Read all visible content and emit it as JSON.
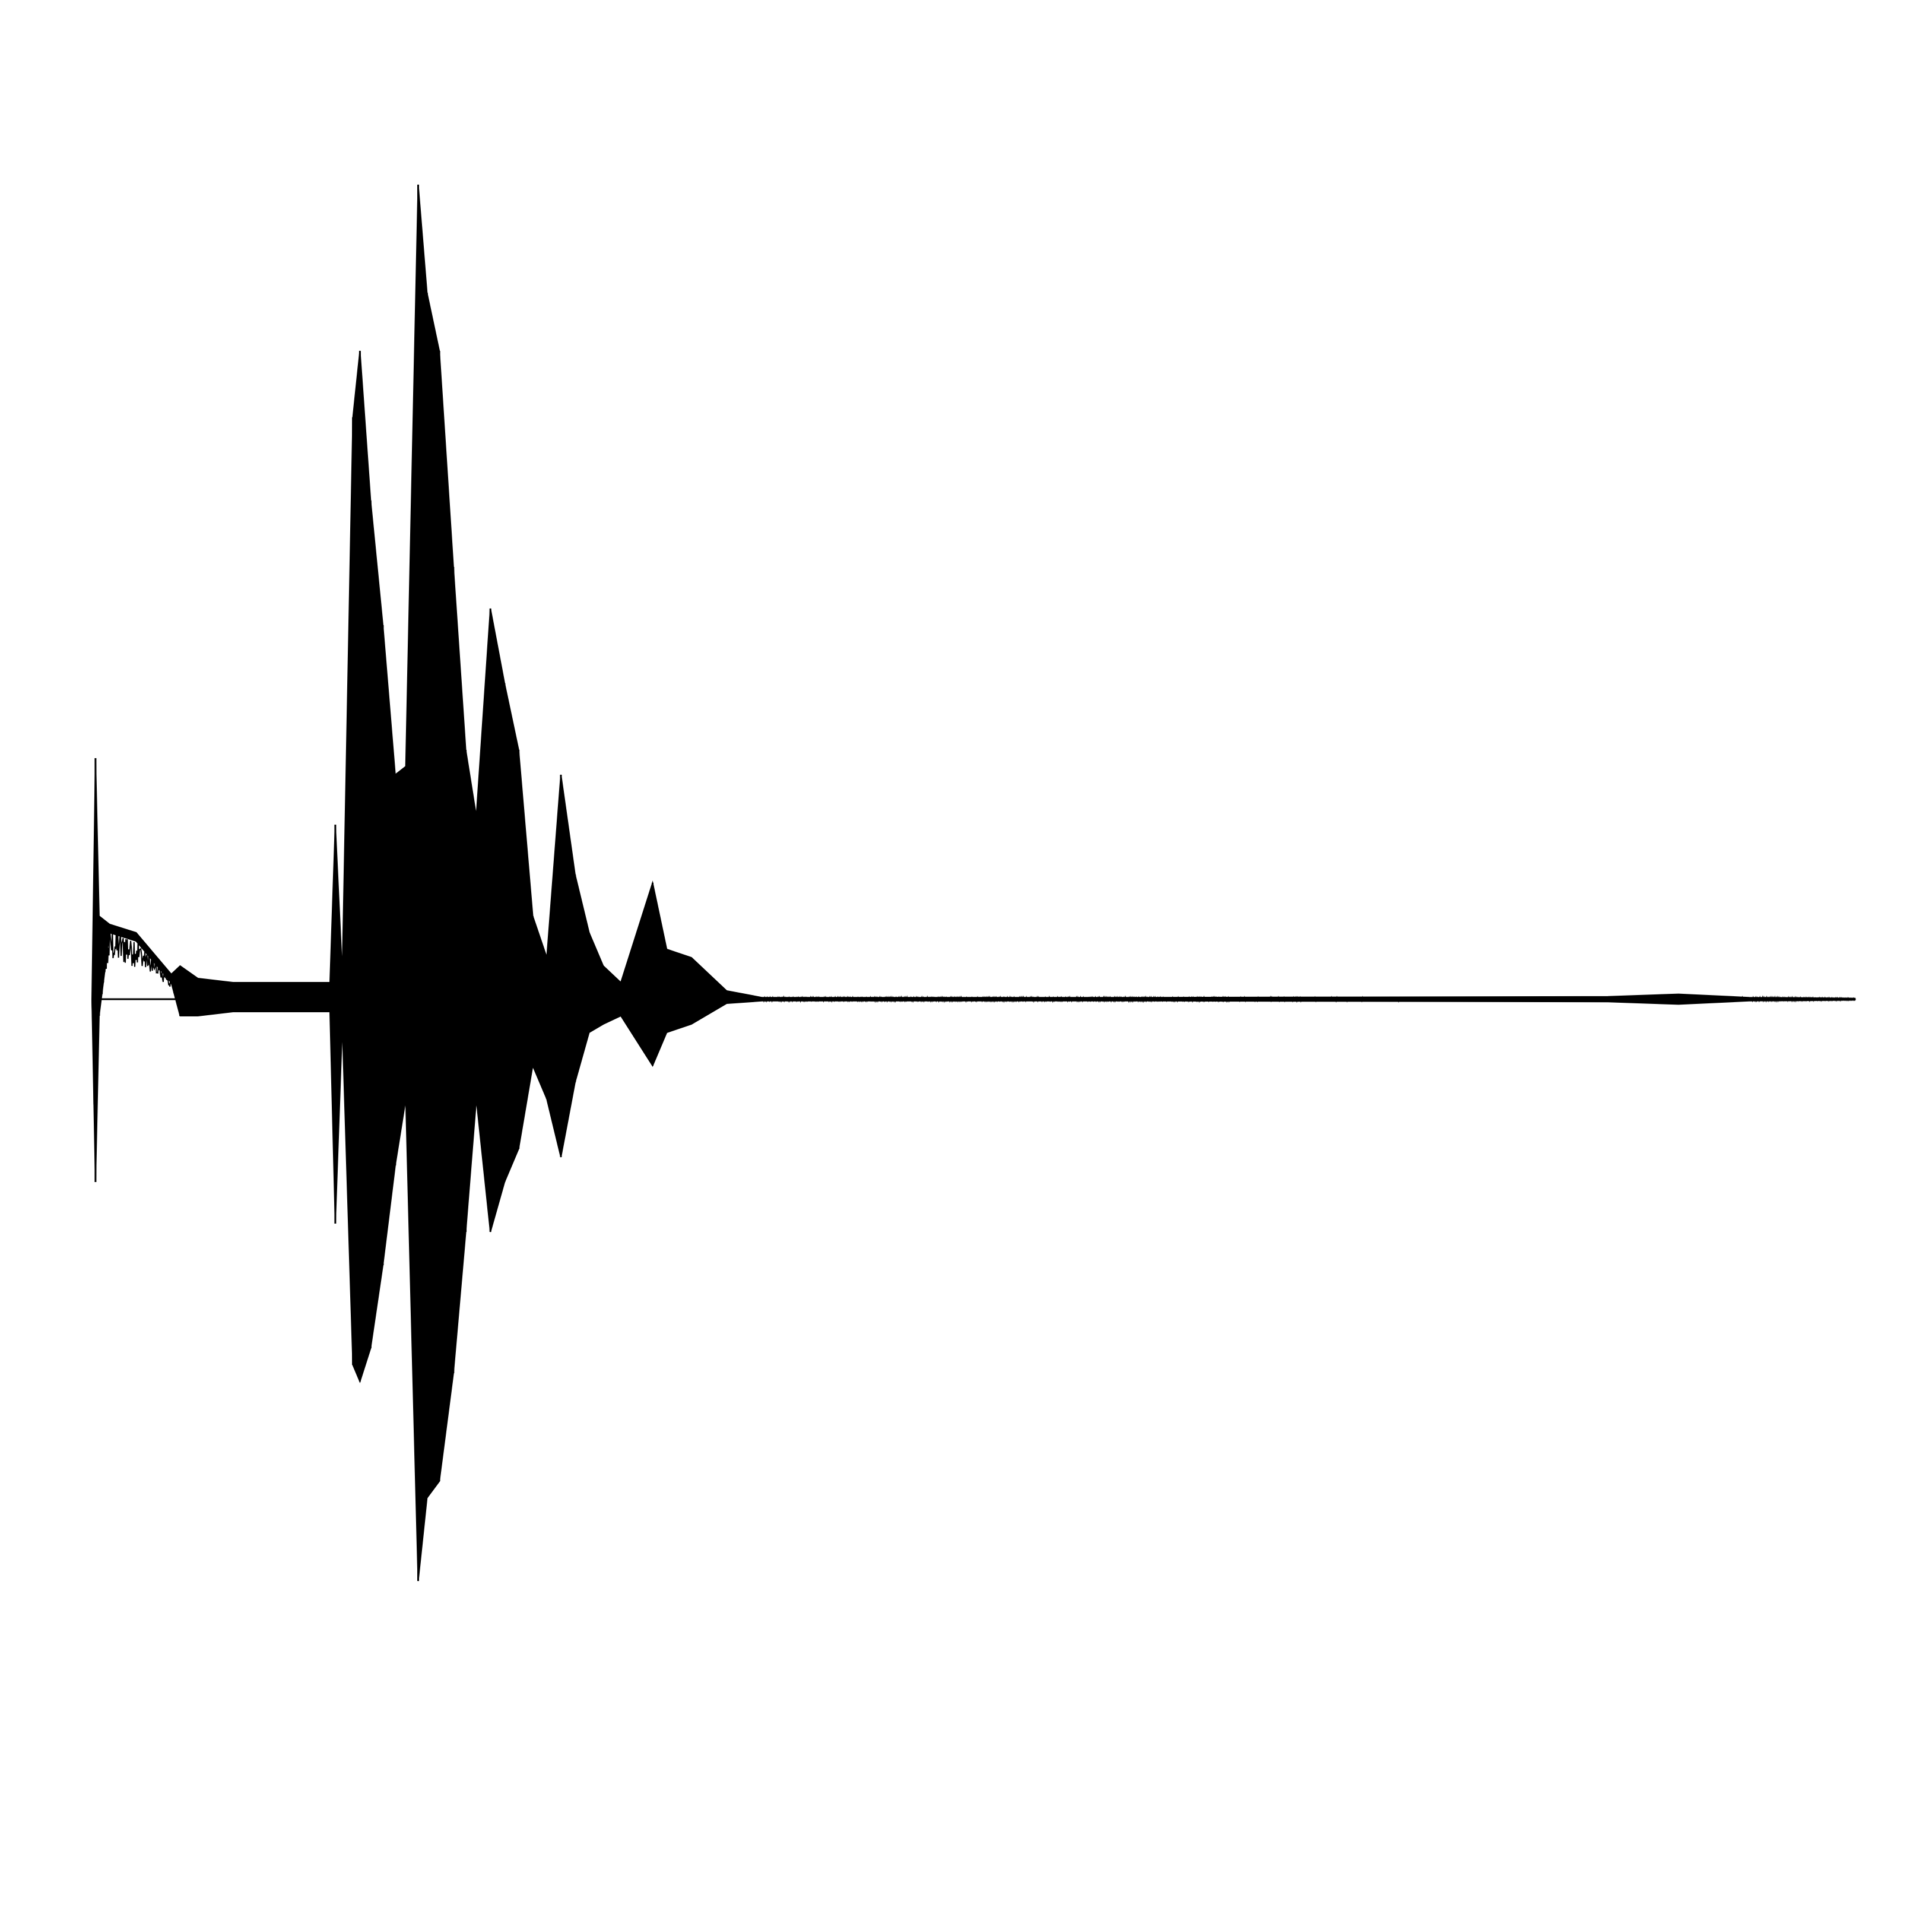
{
  "chart_data": {
    "type": "line",
    "title": "",
    "xlabel": "",
    "ylabel": "",
    "grid": false,
    "legend": "none",
    "axes_visible": false,
    "xlim": [
      0,
      1
    ],
    "ylim": [
      -1,
      1
    ],
    "series": [
      {
        "name": "",
        "color": "#000000",
        "envelope": [
          {
            "x": 0.0,
            "upper": 0.0,
            "lower": 0.0
          },
          {
            "x": 0.002,
            "upper": 0.29,
            "lower": -0.22
          },
          {
            "x": 0.004,
            "upper": 0.1,
            "lower": -0.02
          },
          {
            "x": 0.01,
            "upper": 0.09,
            "lower": 0.08
          },
          {
            "x": 0.025,
            "upper": 0.08,
            "lower": 0.07
          },
          {
            "x": 0.045,
            "upper": 0.03,
            "lower": 0.02
          },
          {
            "x": 0.05,
            "upper": 0.04,
            "lower": -0.02
          },
          {
            "x": 0.06,
            "upper": 0.025,
            "lower": -0.02
          },
          {
            "x": 0.08,
            "upper": 0.02,
            "lower": -0.015
          },
          {
            "x": 0.11,
            "upper": 0.02,
            "lower": -0.015
          },
          {
            "x": 0.135,
            "upper": 0.02,
            "lower": -0.015
          },
          {
            "x": 0.138,
            "upper": 0.21,
            "lower": -0.27
          },
          {
            "x": 0.142,
            "upper": 0.03,
            "lower": -0.03
          },
          {
            "x": 0.148,
            "upper": 0.7,
            "lower": -0.44
          },
          {
            "x": 0.152,
            "upper": 0.78,
            "lower": -0.46
          },
          {
            "x": 0.158,
            "upper": 0.6,
            "lower": -0.42
          },
          {
            "x": 0.165,
            "upper": 0.45,
            "lower": -0.32
          },
          {
            "x": 0.172,
            "upper": 0.27,
            "lower": -0.2
          },
          {
            "x": 0.178,
            "upper": 0.28,
            "lower": -0.12
          },
          {
            "x": 0.185,
            "upper": 0.98,
            "lower": -0.7
          },
          {
            "x": 0.19,
            "upper": 0.85,
            "lower": -0.6
          },
          {
            "x": 0.197,
            "upper": 0.78,
            "lower": -0.58
          },
          {
            "x": 0.205,
            "upper": 0.52,
            "lower": -0.45
          },
          {
            "x": 0.212,
            "upper": 0.3,
            "lower": -0.28
          },
          {
            "x": 0.218,
            "upper": 0.22,
            "lower": -0.12
          },
          {
            "x": 0.226,
            "upper": 0.47,
            "lower": -0.28
          },
          {
            "x": 0.234,
            "upper": 0.38,
            "lower": -0.22
          },
          {
            "x": 0.242,
            "upper": 0.3,
            "lower": -0.18
          },
          {
            "x": 0.25,
            "upper": 0.1,
            "lower": -0.08
          },
          {
            "x": 0.258,
            "upper": 0.05,
            "lower": -0.12
          },
          {
            "x": 0.266,
            "upper": 0.27,
            "lower": -0.19
          },
          {
            "x": 0.274,
            "upper": 0.15,
            "lower": -0.1
          },
          {
            "x": 0.282,
            "upper": 0.08,
            "lower": -0.04
          },
          {
            "x": 0.29,
            "upper": 0.04,
            "lower": -0.03
          },
          {
            "x": 0.3,
            "upper": 0.02,
            "lower": -0.02
          },
          {
            "x": 0.318,
            "upper": 0.14,
            "lower": -0.08
          },
          {
            "x": 0.326,
            "upper": 0.06,
            "lower": -0.04
          },
          {
            "x": 0.34,
            "upper": 0.05,
            "lower": -0.03
          },
          {
            "x": 0.36,
            "upper": 0.01,
            "lower": -0.005
          },
          {
            "x": 0.38,
            "upper": 0.002,
            "lower": -0.002
          },
          {
            "x": 0.6,
            "upper": 0.002,
            "lower": -0.002
          },
          {
            "x": 0.86,
            "upper": 0.003,
            "lower": -0.003
          },
          {
            "x": 0.9,
            "upper": 0.006,
            "lower": -0.006
          },
          {
            "x": 0.94,
            "upper": 0.002,
            "lower": -0.002
          },
          {
            "x": 1.0,
            "upper": 0.001,
            "lower": -0.001
          }
        ]
      }
    ]
  }
}
